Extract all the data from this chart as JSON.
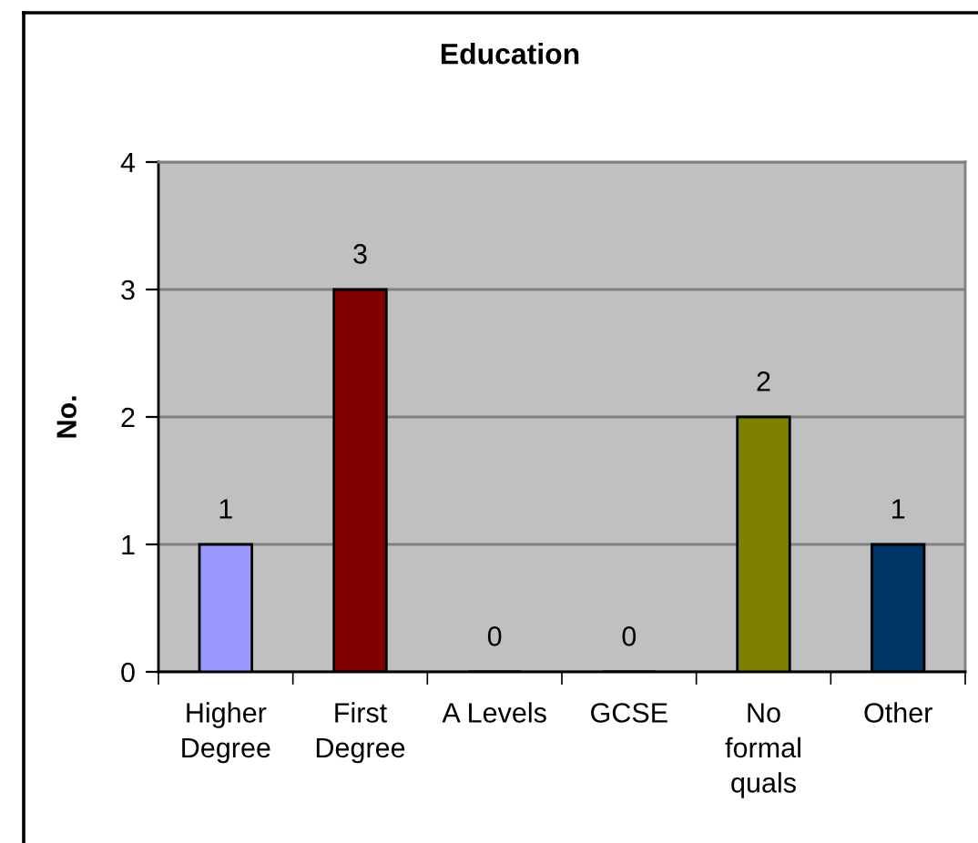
{
  "chart_data": {
    "type": "bar",
    "title": "Education",
    "ylabel": "No.",
    "categories": [
      "Higher Degree",
      "First Degree",
      "A Levels",
      "GCSE",
      "No formal quals",
      "Other"
    ],
    "values": [
      1,
      3,
      0,
      0,
      2,
      1
    ],
    "colors": [
      "#9999ff",
      "#800000",
      null,
      null,
      "#808000",
      "#003366"
    ],
    "ylim": [
      0,
      4
    ],
    "yticks": [
      0,
      1,
      2,
      3,
      4
    ],
    "grid": "y",
    "data_labels": true,
    "legend": false
  }
}
